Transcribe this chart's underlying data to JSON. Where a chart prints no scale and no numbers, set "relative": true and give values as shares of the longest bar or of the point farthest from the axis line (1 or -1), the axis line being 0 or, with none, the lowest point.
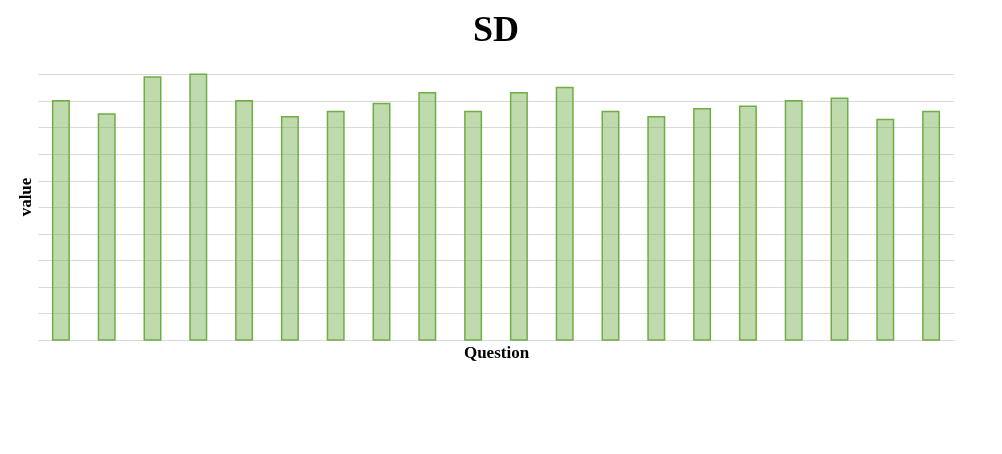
{
  "chart_data": {
    "type": "bar",
    "title": "SD",
    "xlabel": "Question",
    "ylabel": "value",
    "relative": true,
    "grid": "y",
    "color": "#70ad47",
    "categories": [
      null,
      null,
      null,
      null,
      null,
      null,
      null,
      null,
      null,
      null,
      null,
      null,
      null,
      null,
      null,
      null,
      null,
      null,
      null,
      null
    ],
    "values": [
      0.9,
      0.85,
      0.99,
      1,
      0.9,
      0.84,
      0.86,
      0.89,
      0.93,
      0.86,
      0.93,
      0.95,
      0.86,
      0.84,
      0.87,
      0.88,
      0.9,
      0.91,
      0.83,
      0.86
    ]
  }
}
